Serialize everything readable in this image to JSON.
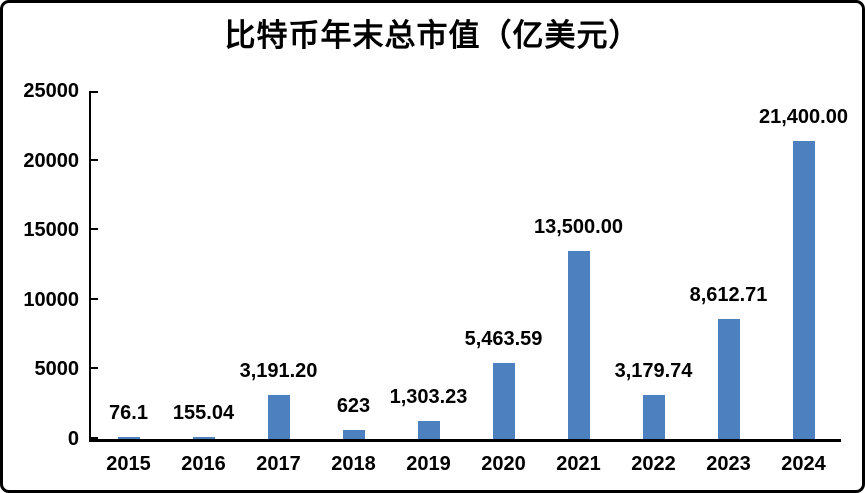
{
  "frame": {
    "background_color": "#ffffff",
    "border_color": "#000000"
  },
  "chart_data": {
    "type": "bar",
    "title": "比特币年末总市值（亿美元）",
    "xlabel": "",
    "ylabel": "",
    "categories": [
      "2015",
      "2016",
      "2017",
      "2018",
      "2019",
      "2020",
      "2021",
      "2022",
      "2023",
      "2024"
    ],
    "values": [
      76.1,
      155.04,
      3191.2,
      623,
      1303.23,
      5463.59,
      13500.0,
      3179.74,
      8612.71,
      21400.0
    ],
    "value_labels": [
      "76.1",
      "155.04",
      "3,191.20",
      "623",
      "1,303.23",
      "5,463.59",
      "13,500.00",
      "3,179.74",
      "8,612.71",
      "21,400.00"
    ],
    "ylim": [
      0,
      25000
    ],
    "yticks": [
      0,
      5000,
      10000,
      15000,
      20000,
      25000
    ],
    "ytick_labels": [
      "0",
      "5000",
      "10000",
      "15000",
      "20000",
      "25000"
    ],
    "grid": false,
    "legend_position": "none",
    "bar_color": "#4D80BF",
    "axis_color": "#000000",
    "label_color": "#000000"
  }
}
